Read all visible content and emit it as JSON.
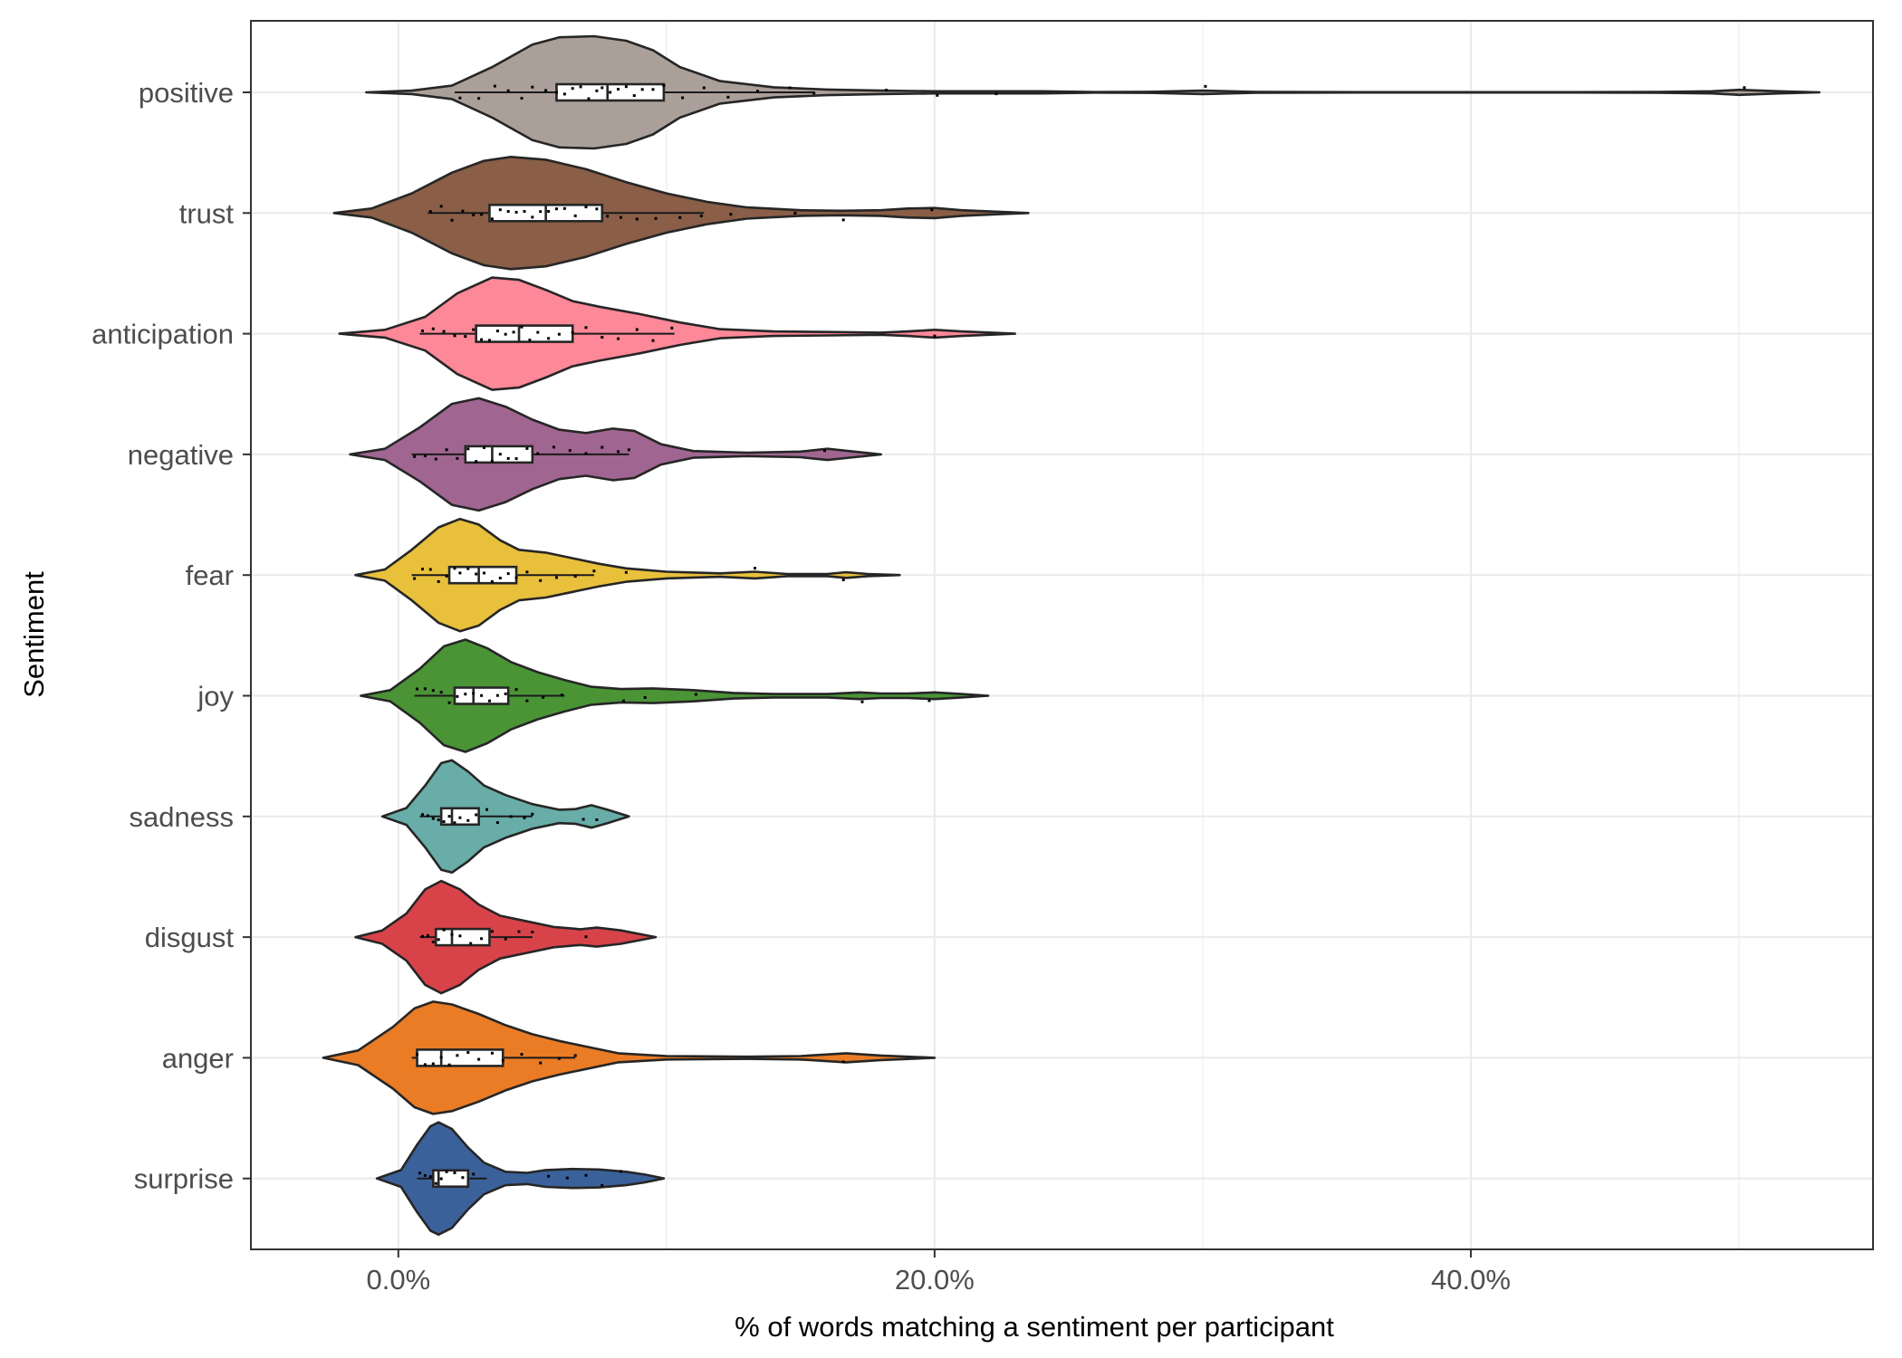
{
  "chart_data": {
    "type": "violin",
    "title": "",
    "xlabel": "% of words matching a sentiment per participant",
    "ylabel": "Sentiment",
    "xlim": [
      -5.5,
      55
    ],
    "x_ticks": [
      0,
      20,
      40
    ],
    "x_tick_labels": [
      "0.0%",
      "20.0%",
      "40.0%"
    ],
    "grid": true,
    "legend": "none",
    "categories": [
      "positive",
      "trust",
      "anticipation",
      "negative",
      "fear",
      "joy",
      "sadness",
      "disgust",
      "anger",
      "surprise"
    ],
    "series": [
      {
        "category": "positive",
        "color": "#aba099",
        "range": [
          -1.2,
          53
        ],
        "box": [
          5.9,
          7.8,
          9.9
        ],
        "whiskers": [
          2.1,
          15.5
        ],
        "density": [
          [
            -1.2,
            0
          ],
          [
            0.5,
            0.03
          ],
          [
            2,
            0.12
          ],
          [
            3.5,
            0.45
          ],
          [
            5,
            0.85
          ],
          [
            6,
            0.98
          ],
          [
            7.3,
            1.0
          ],
          [
            8.5,
            0.92
          ],
          [
            9.5,
            0.75
          ],
          [
            10.5,
            0.45
          ],
          [
            12,
            0.2
          ],
          [
            14,
            0.09
          ],
          [
            16,
            0.05
          ],
          [
            18,
            0.03
          ],
          [
            20,
            0.02
          ],
          [
            22,
            0.02
          ],
          [
            24,
            0.02
          ],
          [
            26,
            0.005
          ],
          [
            28,
            0.01
          ],
          [
            30,
            0.03
          ],
          [
            32,
            0.008
          ],
          [
            36,
            0.004
          ],
          [
            40,
            0.004
          ],
          [
            44,
            0.004
          ],
          [
            47,
            0.006
          ],
          [
            49,
            0.02
          ],
          [
            50,
            0.045
          ],
          [
            51.5,
            0.02
          ],
          [
            53,
            0
          ]
        ],
        "points": [
          2.3,
          3.0,
          3.6,
          4.1,
          4.6,
          5.0,
          5.5,
          5.9,
          6.2,
          6.5,
          6.8,
          7.1,
          7.4,
          7.6,
          7.9,
          8.2,
          8.5,
          8.8,
          9.1,
          9.5,
          9.9,
          10.6,
          11.4,
          12.3,
          13.4,
          14.6,
          15.5,
          18.2,
          20.1,
          22.3,
          30.1,
          50.2
        ]
      },
      {
        "category": "trust",
        "color": "#8a5e47",
        "range": [
          -2.4,
          23.5
        ],
        "box": [
          3.4,
          5.5,
          7.6
        ],
        "whiskers": [
          1.1,
          11.4
        ],
        "density": [
          [
            -2.4,
            0
          ],
          [
            -1,
            0.08
          ],
          [
            0.5,
            0.35
          ],
          [
            2,
            0.72
          ],
          [
            3.2,
            0.93
          ],
          [
            4.2,
            1.0
          ],
          [
            5.5,
            0.95
          ],
          [
            7,
            0.78
          ],
          [
            8.5,
            0.55
          ],
          [
            10,
            0.35
          ],
          [
            11.5,
            0.2
          ],
          [
            13,
            0.1
          ],
          [
            15,
            0.05
          ],
          [
            16.5,
            0.04
          ],
          [
            18,
            0.05
          ],
          [
            19,
            0.08
          ],
          [
            20,
            0.09
          ],
          [
            21,
            0.05
          ],
          [
            22.5,
            0.02
          ],
          [
            23.5,
            0
          ]
        ],
        "points": [
          1.2,
          1.6,
          2.0,
          2.4,
          2.8,
          3.1,
          3.5,
          3.8,
          4.1,
          4.4,
          4.7,
          5.0,
          5.3,
          5.6,
          5.9,
          6.2,
          6.6,
          7.0,
          7.4,
          7.8,
          8.3,
          8.9,
          9.6,
          10.5,
          11.3,
          12.4,
          14.8,
          16.6,
          19.9
        ]
      },
      {
        "category": "anticipation",
        "color": "#fd8898",
        "range": [
          -2.2,
          23
        ],
        "box": [
          2.9,
          4.5,
          6.5
        ],
        "whiskers": [
          0.8,
          10.3
        ],
        "density": [
          [
            -2.2,
            0
          ],
          [
            -0.5,
            0.07
          ],
          [
            1,
            0.3
          ],
          [
            2.2,
            0.72
          ],
          [
            3.5,
            1.0
          ],
          [
            4.5,
            0.96
          ],
          [
            5.5,
            0.78
          ],
          [
            6.5,
            0.58
          ],
          [
            7.5,
            0.48
          ],
          [
            9,
            0.35
          ],
          [
            10.5,
            0.2
          ],
          [
            12,
            0.08
          ],
          [
            14,
            0.04
          ],
          [
            16,
            0.03
          ],
          [
            18,
            0.02
          ],
          [
            19,
            0.04
          ],
          [
            20,
            0.07
          ],
          [
            21,
            0.04
          ],
          [
            23,
            0
          ]
        ],
        "points": [
          0.9,
          1.3,
          1.7,
          2.1,
          2.5,
          2.8,
          3.1,
          3.4,
          3.7,
          4.0,
          4.3,
          4.6,
          4.9,
          5.2,
          5.6,
          6.0,
          6.5,
          7.0,
          7.6,
          8.2,
          8.9,
          9.5,
          10.2,
          20.0
        ]
      },
      {
        "category": "negative",
        "color": "#a06691",
        "range": [
          -1.8,
          18
        ],
        "box": [
          2.5,
          3.5,
          5.0
        ],
        "whiskers": [
          0.5,
          8.6
        ],
        "density": [
          [
            -1.8,
            0
          ],
          [
            -0.5,
            0.1
          ],
          [
            0.8,
            0.48
          ],
          [
            2,
            0.9
          ],
          [
            3,
            1.0
          ],
          [
            4,
            0.85
          ],
          [
            5,
            0.62
          ],
          [
            6,
            0.44
          ],
          [
            7,
            0.38
          ],
          [
            8,
            0.46
          ],
          [
            8.8,
            0.42
          ],
          [
            9.8,
            0.18
          ],
          [
            11,
            0.06
          ],
          [
            13,
            0.03
          ],
          [
            15,
            0.05
          ],
          [
            16,
            0.1
          ],
          [
            17,
            0.05
          ],
          [
            18,
            0
          ]
        ],
        "points": [
          0.6,
          1.0,
          1.4,
          1.8,
          2.2,
          2.6,
          2.9,
          3.2,
          3.5,
          3.8,
          4.1,
          4.4,
          4.8,
          5.2,
          5.8,
          6.4,
          7.0,
          7.6,
          8.2,
          8.6,
          15.9
        ]
      },
      {
        "category": "fear",
        "color": "#e9c03c",
        "range": [
          -1.6,
          18.7
        ],
        "box": [
          1.9,
          3.0,
          4.4
        ],
        "whiskers": [
          0.5,
          7.3
        ],
        "density": [
          [
            -1.6,
            0
          ],
          [
            -0.5,
            0.1
          ],
          [
            0.5,
            0.45
          ],
          [
            1.5,
            0.85
          ],
          [
            2.3,
            1.0
          ],
          [
            3,
            0.9
          ],
          [
            3.8,
            0.62
          ],
          [
            4.5,
            0.45
          ],
          [
            5.5,
            0.4
          ],
          [
            6.5,
            0.3
          ],
          [
            7.5,
            0.2
          ],
          [
            8.5,
            0.12
          ],
          [
            10,
            0.06
          ],
          [
            12,
            0.03
          ],
          [
            13.3,
            0.06
          ],
          [
            14.5,
            0.02
          ],
          [
            16,
            0.02
          ],
          [
            16.7,
            0.05
          ],
          [
            17.5,
            0.02
          ],
          [
            18.7,
            0
          ]
        ],
        "points": [
          0.6,
          0.9,
          1.2,
          1.5,
          1.8,
          2.1,
          2.3,
          2.6,
          2.9,
          3.2,
          3.5,
          3.8,
          4.1,
          4.4,
          4.8,
          5.3,
          5.9,
          6.6,
          7.3,
          8.5,
          13.3,
          16.6
        ]
      },
      {
        "category": "joy",
        "color": "#4a9436",
        "range": [
          -1.4,
          22
        ],
        "box": [
          2.1,
          2.8,
          4.1
        ],
        "whiskers": [
          0.6,
          6.2
        ],
        "density": [
          [
            -1.4,
            0
          ],
          [
            -0.3,
            0.1
          ],
          [
            0.8,
            0.48
          ],
          [
            1.7,
            0.88
          ],
          [
            2.5,
            1.0
          ],
          [
            3.3,
            0.85
          ],
          [
            4.2,
            0.6
          ],
          [
            5.2,
            0.42
          ],
          [
            6.2,
            0.28
          ],
          [
            7.2,
            0.16
          ],
          [
            8.3,
            0.12
          ],
          [
            9.5,
            0.13
          ],
          [
            11,
            0.1
          ],
          [
            12.5,
            0.05
          ],
          [
            14,
            0.03
          ],
          [
            16,
            0.03
          ],
          [
            17.2,
            0.06
          ],
          [
            18,
            0.04
          ],
          [
            19,
            0.04
          ],
          [
            20,
            0.06
          ],
          [
            21,
            0.03
          ],
          [
            22,
            0
          ]
        ],
        "points": [
          0.7,
          1.0,
          1.3,
          1.6,
          1.9,
          2.2,
          2.5,
          2.8,
          3.1,
          3.4,
          3.7,
          4.0,
          4.4,
          4.8,
          5.4,
          6.1,
          8.4,
          9.2,
          11.1,
          17.3,
          19.8
        ]
      },
      {
        "category": "sadness",
        "color": "#68ada7",
        "range": [
          -0.6,
          8.6
        ],
        "box": [
          1.6,
          2.0,
          3.0
        ],
        "whiskers": [
          0.8,
          5.0
        ],
        "density": [
          [
            -0.6,
            0
          ],
          [
            0.3,
            0.15
          ],
          [
            1,
            0.55
          ],
          [
            1.6,
            0.95
          ],
          [
            2.0,
            1.0
          ],
          [
            2.6,
            0.8
          ],
          [
            3.2,
            0.55
          ],
          [
            4,
            0.38
          ],
          [
            5,
            0.22
          ],
          [
            6,
            0.12
          ],
          [
            6.6,
            0.13
          ],
          [
            7.2,
            0.2
          ],
          [
            7.8,
            0.12
          ],
          [
            8.6,
            0
          ]
        ],
        "points": [
          0.9,
          1.1,
          1.3,
          1.5,
          1.7,
          1.9,
          2.1,
          2.3,
          2.6,
          2.9,
          3.3,
          3.7,
          4.2,
          4.7,
          5.0,
          6.9,
          7.4
        ]
      },
      {
        "category": "disgust",
        "color": "#d8434a",
        "range": [
          -1.6,
          9.6
        ],
        "box": [
          1.4,
          2.0,
          3.4
        ],
        "whiskers": [
          0.8,
          5.0
        ],
        "density": [
          [
            -1.6,
            0
          ],
          [
            -0.6,
            0.12
          ],
          [
            0.3,
            0.42
          ],
          [
            1,
            0.85
          ],
          [
            1.6,
            1.0
          ],
          [
            2.3,
            0.85
          ],
          [
            3,
            0.58
          ],
          [
            3.8,
            0.38
          ],
          [
            4.8,
            0.28
          ],
          [
            5.8,
            0.18
          ],
          [
            6.8,
            0.14
          ],
          [
            7.4,
            0.17
          ],
          [
            8.3,
            0.12
          ],
          [
            9.6,
            0
          ]
        ],
        "points": [
          0.9,
          1.1,
          1.3,
          1.5,
          1.7,
          2.0,
          2.3,
          2.7,
          3.1,
          3.5,
          4.0,
          4.5,
          5.0,
          7.0
        ]
      },
      {
        "category": "anger",
        "color": "#ea7c26",
        "range": [
          -2.8,
          20
        ],
        "box": [
          0.7,
          1.6,
          3.9
        ],
        "whiskers": [
          0.5,
          6.6
        ],
        "density": [
          [
            -2.8,
            0
          ],
          [
            -1.5,
            0.13
          ],
          [
            -0.2,
            0.55
          ],
          [
            0.6,
            0.88
          ],
          [
            1.3,
            1.0
          ],
          [
            2,
            0.95
          ],
          [
            3,
            0.78
          ],
          [
            4,
            0.58
          ],
          [
            5,
            0.42
          ],
          [
            6,
            0.3
          ],
          [
            7,
            0.2
          ],
          [
            8.2,
            0.08
          ],
          [
            10,
            0.03
          ],
          [
            13,
            0.02
          ],
          [
            15,
            0.03
          ],
          [
            16.7,
            0.08
          ],
          [
            18,
            0.04
          ],
          [
            20,
            0
          ]
        ],
        "points": [
          0.7,
          1.0,
          1.3,
          1.6,
          1.9,
          2.2,
          2.6,
          3.0,
          3.5,
          3.9,
          4.6,
          5.3,
          6.0,
          6.6,
          16.6
        ]
      },
      {
        "category": "surprise",
        "color": "#3b619b",
        "range": [
          -0.8,
          9.9
        ],
        "box": [
          1.3,
          1.5,
          2.6
        ],
        "whiskers": [
          0.7,
          3.3
        ],
        "density": [
          [
            -0.8,
            0
          ],
          [
            0.1,
            0.15
          ],
          [
            0.7,
            0.6
          ],
          [
            1.2,
            0.93
          ],
          [
            1.5,
            1.0
          ],
          [
            2.0,
            0.88
          ],
          [
            2.6,
            0.55
          ],
          [
            3.2,
            0.28
          ],
          [
            4,
            0.12
          ],
          [
            4.8,
            0.1
          ],
          [
            5.5,
            0.15
          ],
          [
            6.5,
            0.17
          ],
          [
            7.5,
            0.16
          ],
          [
            8.5,
            0.12
          ],
          [
            9.2,
            0.07
          ],
          [
            9.9,
            0
          ]
        ],
        "points": [
          0.8,
          1.0,
          1.2,
          1.4,
          1.6,
          1.8,
          2.1,
          2.4,
          2.8,
          5.6,
          6.3,
          7.0,
          7.6,
          8.3
        ]
      }
    ]
  }
}
